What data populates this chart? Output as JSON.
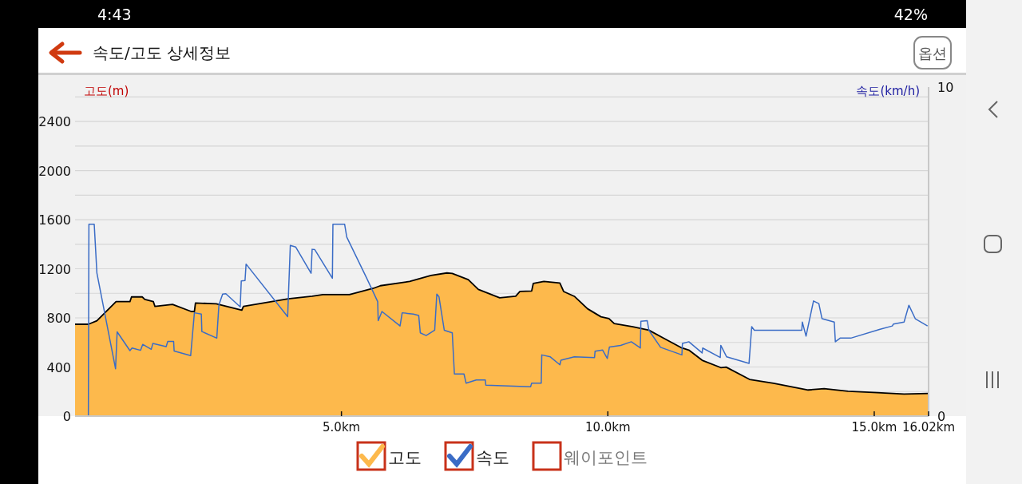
{
  "chart_data": {
    "type": "area",
    "title": "속도/고도 상세정보",
    "ylabel": "고도(m)",
    "y2label": "속도(km/h)",
    "annotations": [
      "옵션",
      "4:43",
      "42%",
      "웨이포인트"
    ],
    "xlim": [
      0,
      16.02
    ],
    "xticks": [
      {
        "value": 5,
        "label": "5.0km"
      },
      {
        "value": 10,
        "label": "10.0km"
      },
      {
        "value": 15,
        "label": "15.0km"
      },
      {
        "value": 16.02,
        "label": "16.02km"
      }
    ],
    "ylim": [
      0,
      2680
    ],
    "yticks": [
      0,
      {
        "value": 200,
        "label": null
      },
      400,
      {
        "value": 600,
        "label": null
      },
      800,
      {
        "value": 1000,
        "label": null
      },
      1200,
      {
        "value": 1400,
        "label": null
      },
      1600,
      {
        "value": 1800,
        "label": null
      },
      2000,
      {
        "value": 2200,
        "label": null
      },
      2400,
      {
        "value": 2600,
        "label": null
      }
    ],
    "y2lim": [
      0,
      10
    ],
    "y2ticks": [
      0,
      10
    ],
    "grid": "y",
    "legend": "bottom",
    "series": [
      {
        "name": "고도",
        "type": "area",
        "color": "#fdb94c",
        "x": [
          0,
          0.25,
          0.41,
          0.77,
          1.03,
          1.06,
          1.26,
          1.31,
          1.47,
          1.5,
          1.83,
          2.18,
          2.24,
          2.26,
          2.65,
          3.13,
          3.16,
          4.0,
          4.45,
          4.65,
          5.15,
          5.6,
          5.73,
          6.28,
          6.68,
          6.98,
          7.08,
          7.38,
          7.57,
          7.97,
          8.27,
          8.35,
          8.57,
          8.6,
          8.8,
          9.1,
          9.17,
          9.37,
          9.62,
          9.87,
          10.02,
          10.12,
          10.47,
          10.77,
          11.07,
          11.37,
          11.52,
          11.77,
          12.12,
          12.22,
          12.66,
          13.11,
          13.76,
          14.06,
          14.51,
          15.06,
          15.56,
          16.02
        ],
        "values": [
          748,
          748,
          776,
          932,
          932,
          971,
          971,
          950,
          932,
          893,
          910,
          852,
          852,
          921,
          915,
          863,
          893,
          956,
          976,
          989,
          989,
          1041,
          1062,
          1097,
          1145,
          1166,
          1162,
          1112,
          1032,
          963,
          976,
          1015,
          1019,
          1080,
          1097,
          1084,
          1015,
          976,
          874,
          809,
          795,
          754,
          728,
          700,
          629,
          559,
          538,
          455,
          395,
          399,
          299,
          267,
          213,
          223,
          202,
          191,
          180,
          184
        ]
      },
      {
        "name": "속도",
        "type": "line",
        "axis": "y2",
        "color": "#3a6cc6",
        "x": [
          0,
          0.25,
          0.26,
          0.36,
          0.41,
          0.76,
          0.79,
          1.03,
          1.07,
          1.23,
          1.27,
          1.43,
          1.46,
          1.71,
          1.74,
          1.85,
          1.86,
          2.17,
          2.24,
          2.37,
          2.38,
          2.66,
          2.7,
          2.77,
          2.83,
          3.1,
          3.12,
          3.19,
          3.21,
          3.99,
          4.04,
          4.14,
          4.43,
          4.45,
          4.5,
          4.83,
          4.84,
          5.06,
          5.1,
          5.48,
          5.68,
          5.69,
          5.76,
          6.1,
          6.14,
          6.35,
          6.45,
          6.48,
          6.59,
          6.75,
          6.79,
          6.83,
          6.93,
          7.08,
          7.12,
          7.3,
          7.34,
          7.53,
          7.7,
          7.71,
          8.55,
          8.57,
          8.75,
          8.76,
          8.92,
          9.1,
          9.12,
          9.37,
          9.75,
          9.76,
          9.9,
          9.99,
          10.03,
          10.24,
          10.44,
          10.61,
          10.62,
          10.74,
          10.77,
          10.99,
          11.39,
          11.4,
          11.52,
          11.77,
          11.78,
          12.11,
          12.12,
          12.23,
          12.65,
          12.7,
          12.75,
          13.64,
          13.65,
          13.72,
          13.76,
          13.86,
          13.96,
          14.02,
          14.25,
          14.27,
          14.36,
          14.56,
          15.11,
          15.34,
          15.36,
          15.56,
          15.65,
          15.77,
          16.0
        ],
        "values": [
          0,
          0,
          5.83,
          5.83,
          4.35,
          1.44,
          2.56,
          1.99,
          2.07,
          2.0,
          2.18,
          2.03,
          2.21,
          2.11,
          2.27,
          2.27,
          1.98,
          1.84,
          3.14,
          3.1,
          2.57,
          2.37,
          3.38,
          3.71,
          3.72,
          3.32,
          4.11,
          4.12,
          4.62,
          3.02,
          5.19,
          5.14,
          4.34,
          5.07,
          5.06,
          4.19,
          5.83,
          5.83,
          5.44,
          4.17,
          3.48,
          2.9,
          3.18,
          2.74,
          3.14,
          3.1,
          3.06,
          2.53,
          2.45,
          2.61,
          3.71,
          3.63,
          2.61,
          2.53,
          1.28,
          1.28,
          1.0,
          1.1,
          1.1,
          0.94,
          0.89,
          1.0,
          1.0,
          1.86,
          1.8,
          1.56,
          1.7,
          1.8,
          1.78,
          1.97,
          2.01,
          1.75,
          2.1,
          2.15,
          2.26,
          2.07,
          2.88,
          2.9,
          2.61,
          2.09,
          1.86,
          2.21,
          2.26,
          1.92,
          2.07,
          1.78,
          2.15,
          1.8,
          1.6,
          2.72,
          2.61,
          2.61,
          2.86,
          2.43,
          2.74,
          3.5,
          3.42,
          2.96,
          2.86,
          2.26,
          2.37,
          2.37,
          2.64,
          2.74,
          2.8,
          2.86,
          3.37,
          2.96,
          2.74
        ]
      }
    ]
  }
}
